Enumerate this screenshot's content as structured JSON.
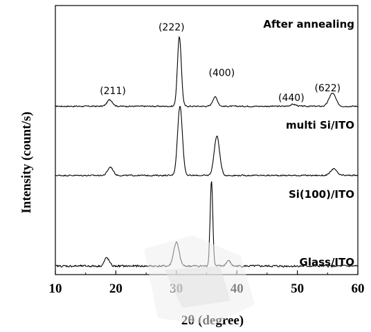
{
  "chart_data": {
    "type": "line",
    "xlabel": "2θ (degree)",
    "ylabel": "Intensity (count/s)",
    "xlim": [
      10,
      60
    ],
    "xticks": [
      "10",
      "20",
      "30",
      "40",
      "50",
      "60"
    ],
    "yticks_shown": false,
    "grid": false,
    "legend": "none",
    "colors": {
      "line": "#000000",
      "watermark": "#e6e6e6"
    },
    "series": [
      {
        "name": "After annealing",
        "baseline": 0.25,
        "noise": 0.06,
        "peaks": [
          {
            "x": 19.0,
            "h": 0.7,
            "w": 0.45
          },
          {
            "x": 30.5,
            "h": 7.4,
            "w": 0.32
          },
          {
            "x": 36.4,
            "h": 1.0,
            "w": 0.4
          },
          {
            "x": 49.3,
            "h": 0.2,
            "w": 0.5
          },
          {
            "x": 55.8,
            "h": 1.4,
            "w": 0.55
          }
        ]
      },
      {
        "name": "multi Si/ITO",
        "baseline": 0.25,
        "noise": 0.06,
        "peaks": [
          {
            "x": 19.1,
            "h": 0.9,
            "w": 0.45
          },
          {
            "x": 30.6,
            "h": 7.4,
            "w": 0.4
          },
          {
            "x": 36.7,
            "h": 4.2,
            "w": 0.45
          },
          {
            "x": 56.0,
            "h": 0.7,
            "w": 0.5
          }
        ]
      },
      {
        "name": "Glass/ITO",
        "baseline": 0.25,
        "noise": 0.1,
        "peaks": [
          {
            "x": 18.5,
            "h": 0.9,
            "w": 0.4
          },
          {
            "x": 30.0,
            "h": 2.6,
            "w": 0.45
          },
          {
            "x": 35.8,
            "h": 9.4,
            "w": 0.22
          },
          {
            "x": 38.6,
            "h": 0.6,
            "w": 0.35
          }
        ]
      }
    ],
    "annotations": [
      {
        "text": "After annealing",
        "style": "title"
      },
      {
        "text": "multi Si/ITO",
        "style": "label"
      },
      {
        "text": "Si(100)/ITO",
        "style": "label"
      },
      {
        "text": "Glass/ITO",
        "style": "label"
      }
    ],
    "peak_labels": [
      {
        "text": "(211)",
        "x": 19.5
      },
      {
        "text": "(222)",
        "x": 29.2
      },
      {
        "text": "(400)",
        "x": 37.5
      },
      {
        "text": "(440)",
        "x": 49.0
      },
      {
        "text": "(622)",
        "x": 55.0
      }
    ]
  }
}
